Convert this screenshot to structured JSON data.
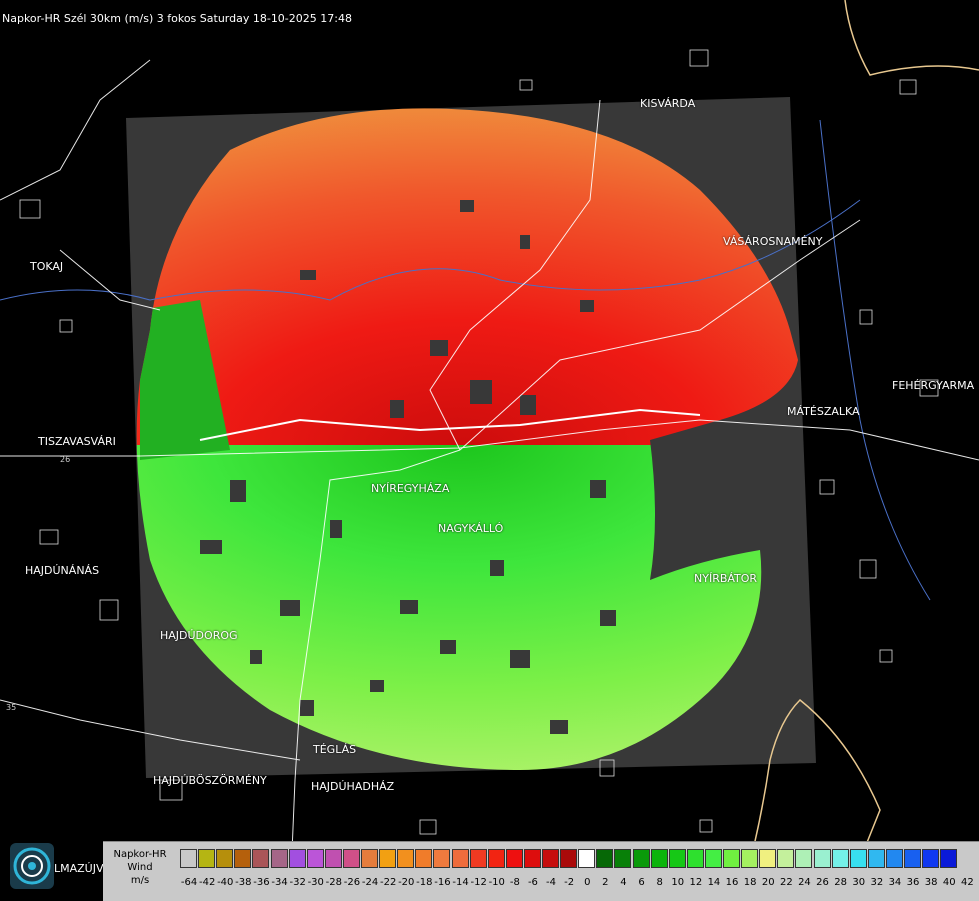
{
  "header": {
    "title": "Napkor-HR Szél 30km (m/s) 3 fokos Saturday 18-10-2025 17:48"
  },
  "cities": [
    {
      "id": "kisvarda",
      "name": "KISVÁRDA"
    },
    {
      "id": "tokaj",
      "name": "TOKAJ"
    },
    {
      "id": "vasarosnameny",
      "name": "VÁSÁROSNAMÉNY"
    },
    {
      "id": "fehergyarmat",
      "name": "FEHÉRGYARMA"
    },
    {
      "id": "tiszavasvari",
      "name": "TISZAVASVÁRI"
    },
    {
      "id": "mateszalka",
      "name": "MÁTÉSZALKA"
    },
    {
      "id": "nyiregyhaza",
      "name": "NYÍREGYHÁZA"
    },
    {
      "id": "nagykallo",
      "name": "NAGYKÁLLÓ"
    },
    {
      "id": "hajdunanas",
      "name": "HAJDÚNÁNÁS"
    },
    {
      "id": "nyirbator",
      "name": "NYÍRBÁTOR"
    },
    {
      "id": "hajdudorog",
      "name": "HAJDÚDOROG"
    },
    {
      "id": "teglas",
      "name": "TÉGLÁS"
    },
    {
      "id": "hajduboszormeny",
      "name": "HAJDÚBÖSZÖRMÉNY"
    },
    {
      "id": "hajduhadhaz",
      "name": "HAJDÚHADHÁZ"
    },
    {
      "id": "balmazujvaros",
      "name": "LMAZÚJVÁR"
    }
  ],
  "road_numbers": [
    "26",
    "35"
  ],
  "legend": {
    "label_line1": "Napkor-HR",
    "label_line2": "Wind",
    "label_line3": "m/s",
    "ticks": [
      "-64",
      "-42",
      "-40",
      "-38",
      "-36",
      "-34",
      "-32",
      "-30",
      "-28",
      "-26",
      "-24",
      "-22",
      "-20",
      "-18",
      "-16",
      "-14",
      "-12",
      "-10",
      "-8",
      "-6",
      "-4",
      "-2",
      "0",
      "2",
      "4",
      "6",
      "8",
      "10",
      "12",
      "14",
      "16",
      "18",
      "20",
      "22",
      "24",
      "26",
      "28",
      "30",
      "32",
      "34",
      "36",
      "38",
      "40",
      "42"
    ],
    "colors": [
      "#c8c8c8",
      "#b5b513",
      "#b68f0c",
      "#b5600c",
      "#aa5558",
      "#a56688",
      "#a24fe0",
      "#bb55d8",
      "#c050b0",
      "#d05088",
      "#e57c3c",
      "#f2a012",
      "#f2901e",
      "#f07c2a",
      "#ef7a3e",
      "#ef6c3c",
      "#f03a22",
      "#f22412",
      "#ee1010",
      "#dd0d0d",
      "#c60d0d",
      "#aa0a0a",
      "#ffffff",
      "#066806",
      "#088008",
      "#0a9a0a",
      "#0bb40b",
      "#16c816",
      "#2ee02e",
      "#44ee44",
      "#70f040",
      "#a4f060",
      "#f0f080",
      "#c4f09c",
      "#aef0b6",
      "#9af0d0",
      "#74f0e8",
      "#38e0f0",
      "#30b8f0",
      "#2288f0",
      "#1860f0",
      "#1038f0",
      "#0a1ad8"
    ]
  },
  "logo": {
    "name": "napkor-logo-icon"
  }
}
